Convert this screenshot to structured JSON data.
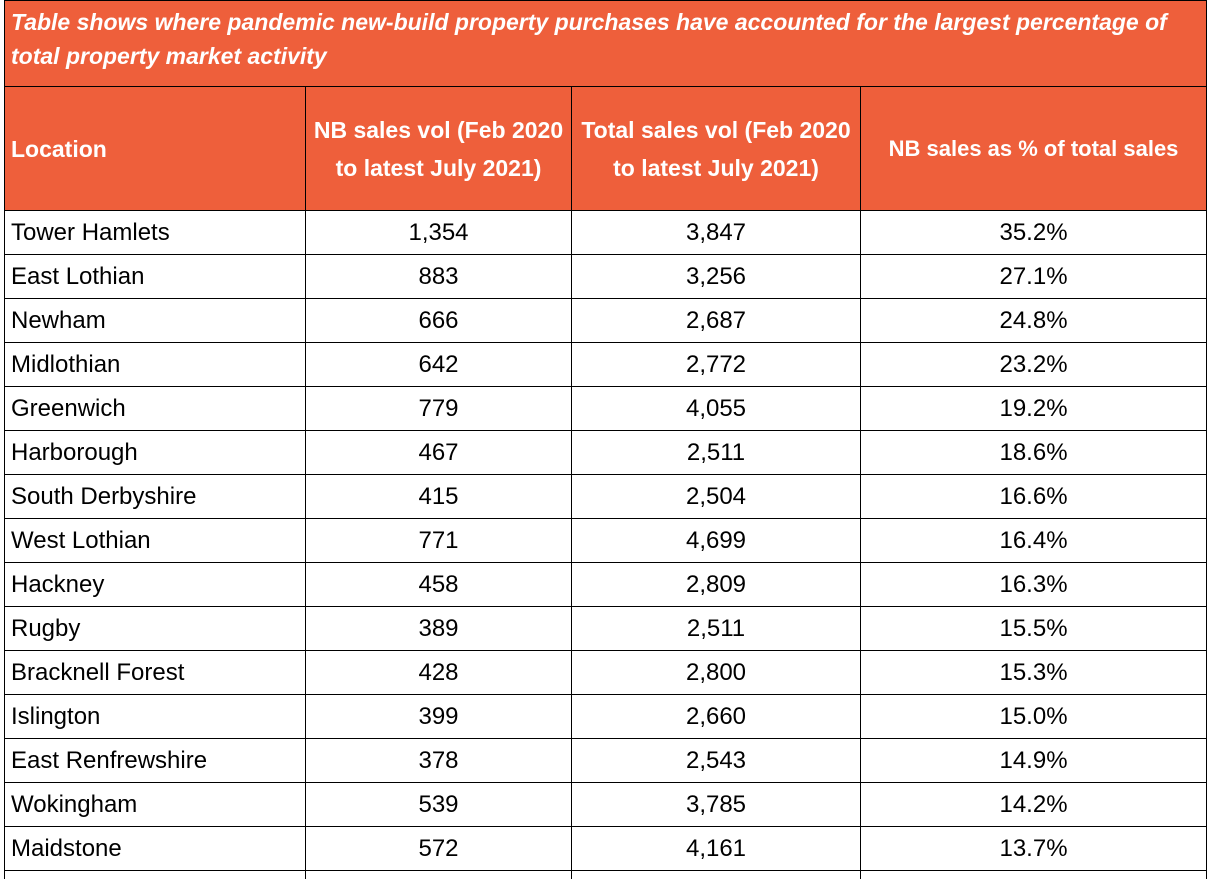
{
  "table": {
    "title": "Table shows where pandemic new-build property purchases have accounted for the largest percentage of total property market activity",
    "headers": [
      "Location",
      "NB sales vol (Feb 2020 to latest July 2021)",
      "Total sales vol (Feb 2020 to latest July 2021)",
      "NB sales as % of total sales"
    ],
    "rows": [
      [
        "Tower Hamlets",
        "1,354",
        "3,847",
        "35.2%"
      ],
      [
        "East Lothian",
        "883",
        "3,256",
        "27.1%"
      ],
      [
        "Newham",
        "666",
        "2,687",
        "24.8%"
      ],
      [
        "Midlothian",
        "642",
        "2,772",
        "23.2%"
      ],
      [
        "Greenwich",
        "779",
        "4,055",
        "19.2%"
      ],
      [
        "Harborough",
        "467",
        "2,511",
        "18.6%"
      ],
      [
        "South Derbyshire",
        "415",
        "2,504",
        "16.6%"
      ],
      [
        "West Lothian",
        "771",
        "4,699",
        "16.4%"
      ],
      [
        "Hackney",
        "458",
        "2,809",
        "16.3%"
      ],
      [
        "Rugby",
        "389",
        "2,511",
        "15.5%"
      ],
      [
        "Bracknell Forest",
        "428",
        "2,800",
        "15.3%"
      ],
      [
        "Islington",
        "399",
        "2,660",
        "15.0%"
      ],
      [
        "East Renfrewshire",
        "378",
        "2,543",
        "14.9%"
      ],
      [
        "Wokingham",
        "539",
        "3,785",
        "14.2%"
      ],
      [
        "Maidstone",
        "572",
        "4,161",
        "13.7%"
      ]
    ]
  },
  "colors": {
    "header_bg": "#ee5f3b",
    "header_text": "#ffffff",
    "border": "#000000"
  }
}
